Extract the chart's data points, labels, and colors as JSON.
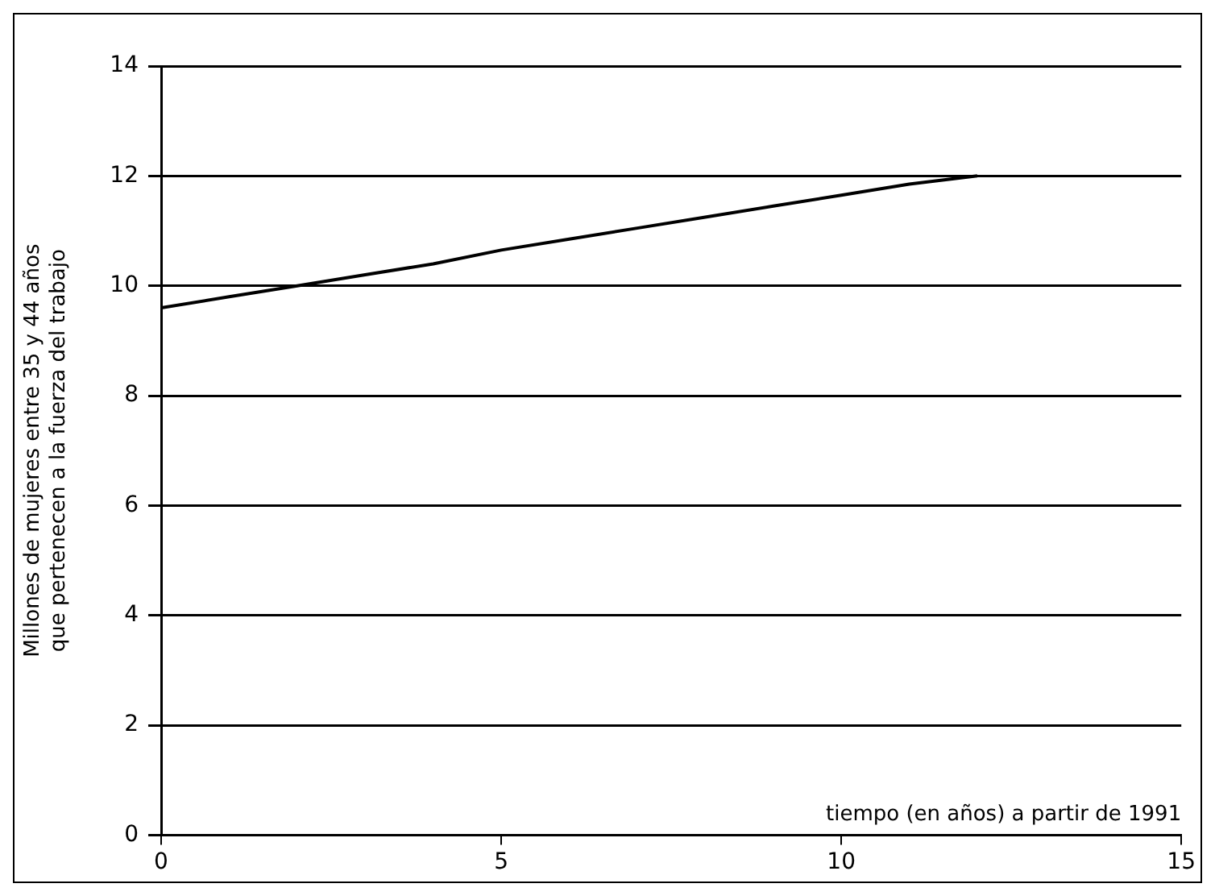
{
  "chart_data": {
    "type": "line",
    "xlabel": "tiempo (en años) a partir de 1991",
    "ylabel": "Millones de mujeres entre 35 y 44 años\nque pertenecen a la fuerza del trabajo",
    "series": [
      {
        "color": "#000000",
        "x": [
          0,
          1,
          2,
          3,
          4,
          5,
          6,
          7,
          8,
          9,
          10,
          11,
          12
        ],
        "values": [
          9.6,
          9.8,
          10.0,
          10.2,
          10.4,
          10.65,
          10.85,
          11.05,
          11.25,
          11.45,
          11.65,
          11.85,
          12.0
        ]
      }
    ],
    "xlim": [
      0,
      15
    ],
    "xticks": [
      0,
      5,
      10,
      15
    ],
    "ylim": [
      0,
      14
    ],
    "yticks": [
      0,
      2,
      4,
      6,
      8,
      10,
      12,
      14
    ],
    "grid": "y",
    "legend": false,
    "marker": "none",
    "line_style": "solid"
  }
}
